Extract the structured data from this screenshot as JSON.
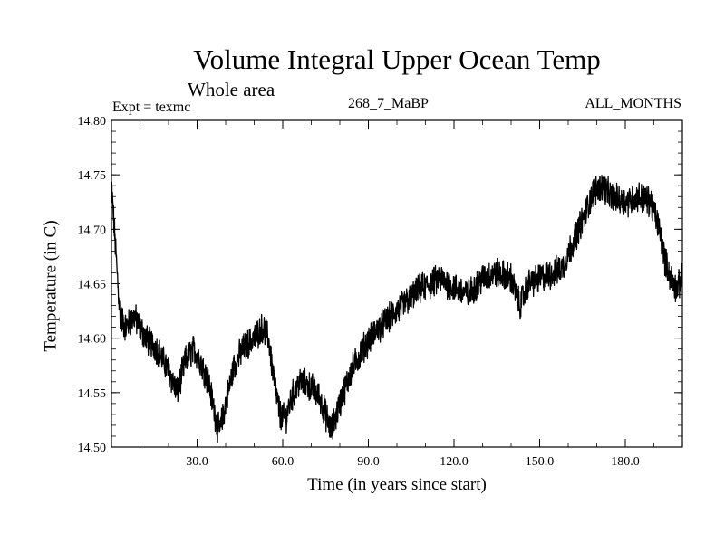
{
  "chart_data": {
    "type": "line",
    "title": "Volume Integral Upper Ocean Temp",
    "subtitle": "Whole area",
    "annotations": {
      "experiment": "Expt = texmc",
      "run": "268_7_MaBP",
      "months": "ALL_MONTHS"
    },
    "xlabel": "Time (in years since start)",
    "ylabel": "Temperature (in C)",
    "xlim": [
      0,
      200
    ],
    "ylim": [
      14.5,
      14.8
    ],
    "xticks": [
      30,
      60,
      90,
      120,
      150,
      180
    ],
    "xtick_labels": [
      "30.0",
      "60.0",
      "90.0",
      "120.0",
      "150.0",
      "180.0"
    ],
    "yticks": [
      14.5,
      14.55,
      14.6,
      14.65,
      14.7,
      14.75,
      14.8
    ],
    "ytick_labels": [
      "14.50",
      "14.55",
      "14.60",
      "14.65",
      "14.70",
      "14.75",
      "14.80"
    ],
    "grid": false,
    "series": [
      {
        "name": "Temperature",
        "color": "#000000",
        "noise_amplitude": 0.012,
        "trend": [
          [
            0,
            14.74
          ],
          [
            1,
            14.7
          ],
          [
            2,
            14.66
          ],
          [
            3,
            14.62
          ],
          [
            5,
            14.61
          ],
          [
            8,
            14.62
          ],
          [
            12,
            14.6
          ],
          [
            16,
            14.59
          ],
          [
            20,
            14.57
          ],
          [
            23,
            14.55
          ],
          [
            26,
            14.58
          ],
          [
            29,
            14.59
          ],
          [
            31,
            14.58
          ],
          [
            34,
            14.56
          ],
          [
            37,
            14.52
          ],
          [
            38,
            14.515
          ],
          [
            40,
            14.54
          ],
          [
            43,
            14.575
          ],
          [
            46,
            14.59
          ],
          [
            50,
            14.6
          ],
          [
            53,
            14.61
          ],
          [
            55,
            14.6
          ],
          [
            57,
            14.56
          ],
          [
            59,
            14.53
          ],
          [
            61,
            14.525
          ],
          [
            63,
            14.545
          ],
          [
            66,
            14.56
          ],
          [
            70,
            14.555
          ],
          [
            73,
            14.545
          ],
          [
            75,
            14.53
          ],
          [
            77,
            14.515
          ],
          [
            80,
            14.54
          ],
          [
            84,
            14.57
          ],
          [
            88,
            14.59
          ],
          [
            92,
            14.605
          ],
          [
            96,
            14.615
          ],
          [
            100,
            14.625
          ],
          [
            104,
            14.635
          ],
          [
            108,
            14.645
          ],
          [
            112,
            14.65
          ],
          [
            115,
            14.655
          ],
          [
            118,
            14.65
          ],
          [
            121,
            14.645
          ],
          [
            125,
            14.64
          ],
          [
            130,
            14.655
          ],
          [
            135,
            14.66
          ],
          [
            140,
            14.655
          ],
          [
            143,
            14.63
          ],
          [
            146,
            14.65
          ],
          [
            150,
            14.655
          ],
          [
            155,
            14.66
          ],
          [
            158,
            14.665
          ],
          [
            162,
            14.69
          ],
          [
            166,
            14.715
          ],
          [
            169,
            14.735
          ],
          [
            172,
            14.74
          ],
          [
            175,
            14.73
          ],
          [
            180,
            14.725
          ],
          [
            185,
            14.73
          ],
          [
            189,
            14.725
          ],
          [
            192,
            14.7
          ],
          [
            194,
            14.67
          ],
          [
            196,
            14.655
          ],
          [
            198,
            14.645
          ],
          [
            200,
            14.655
          ]
        ]
      }
    ]
  }
}
